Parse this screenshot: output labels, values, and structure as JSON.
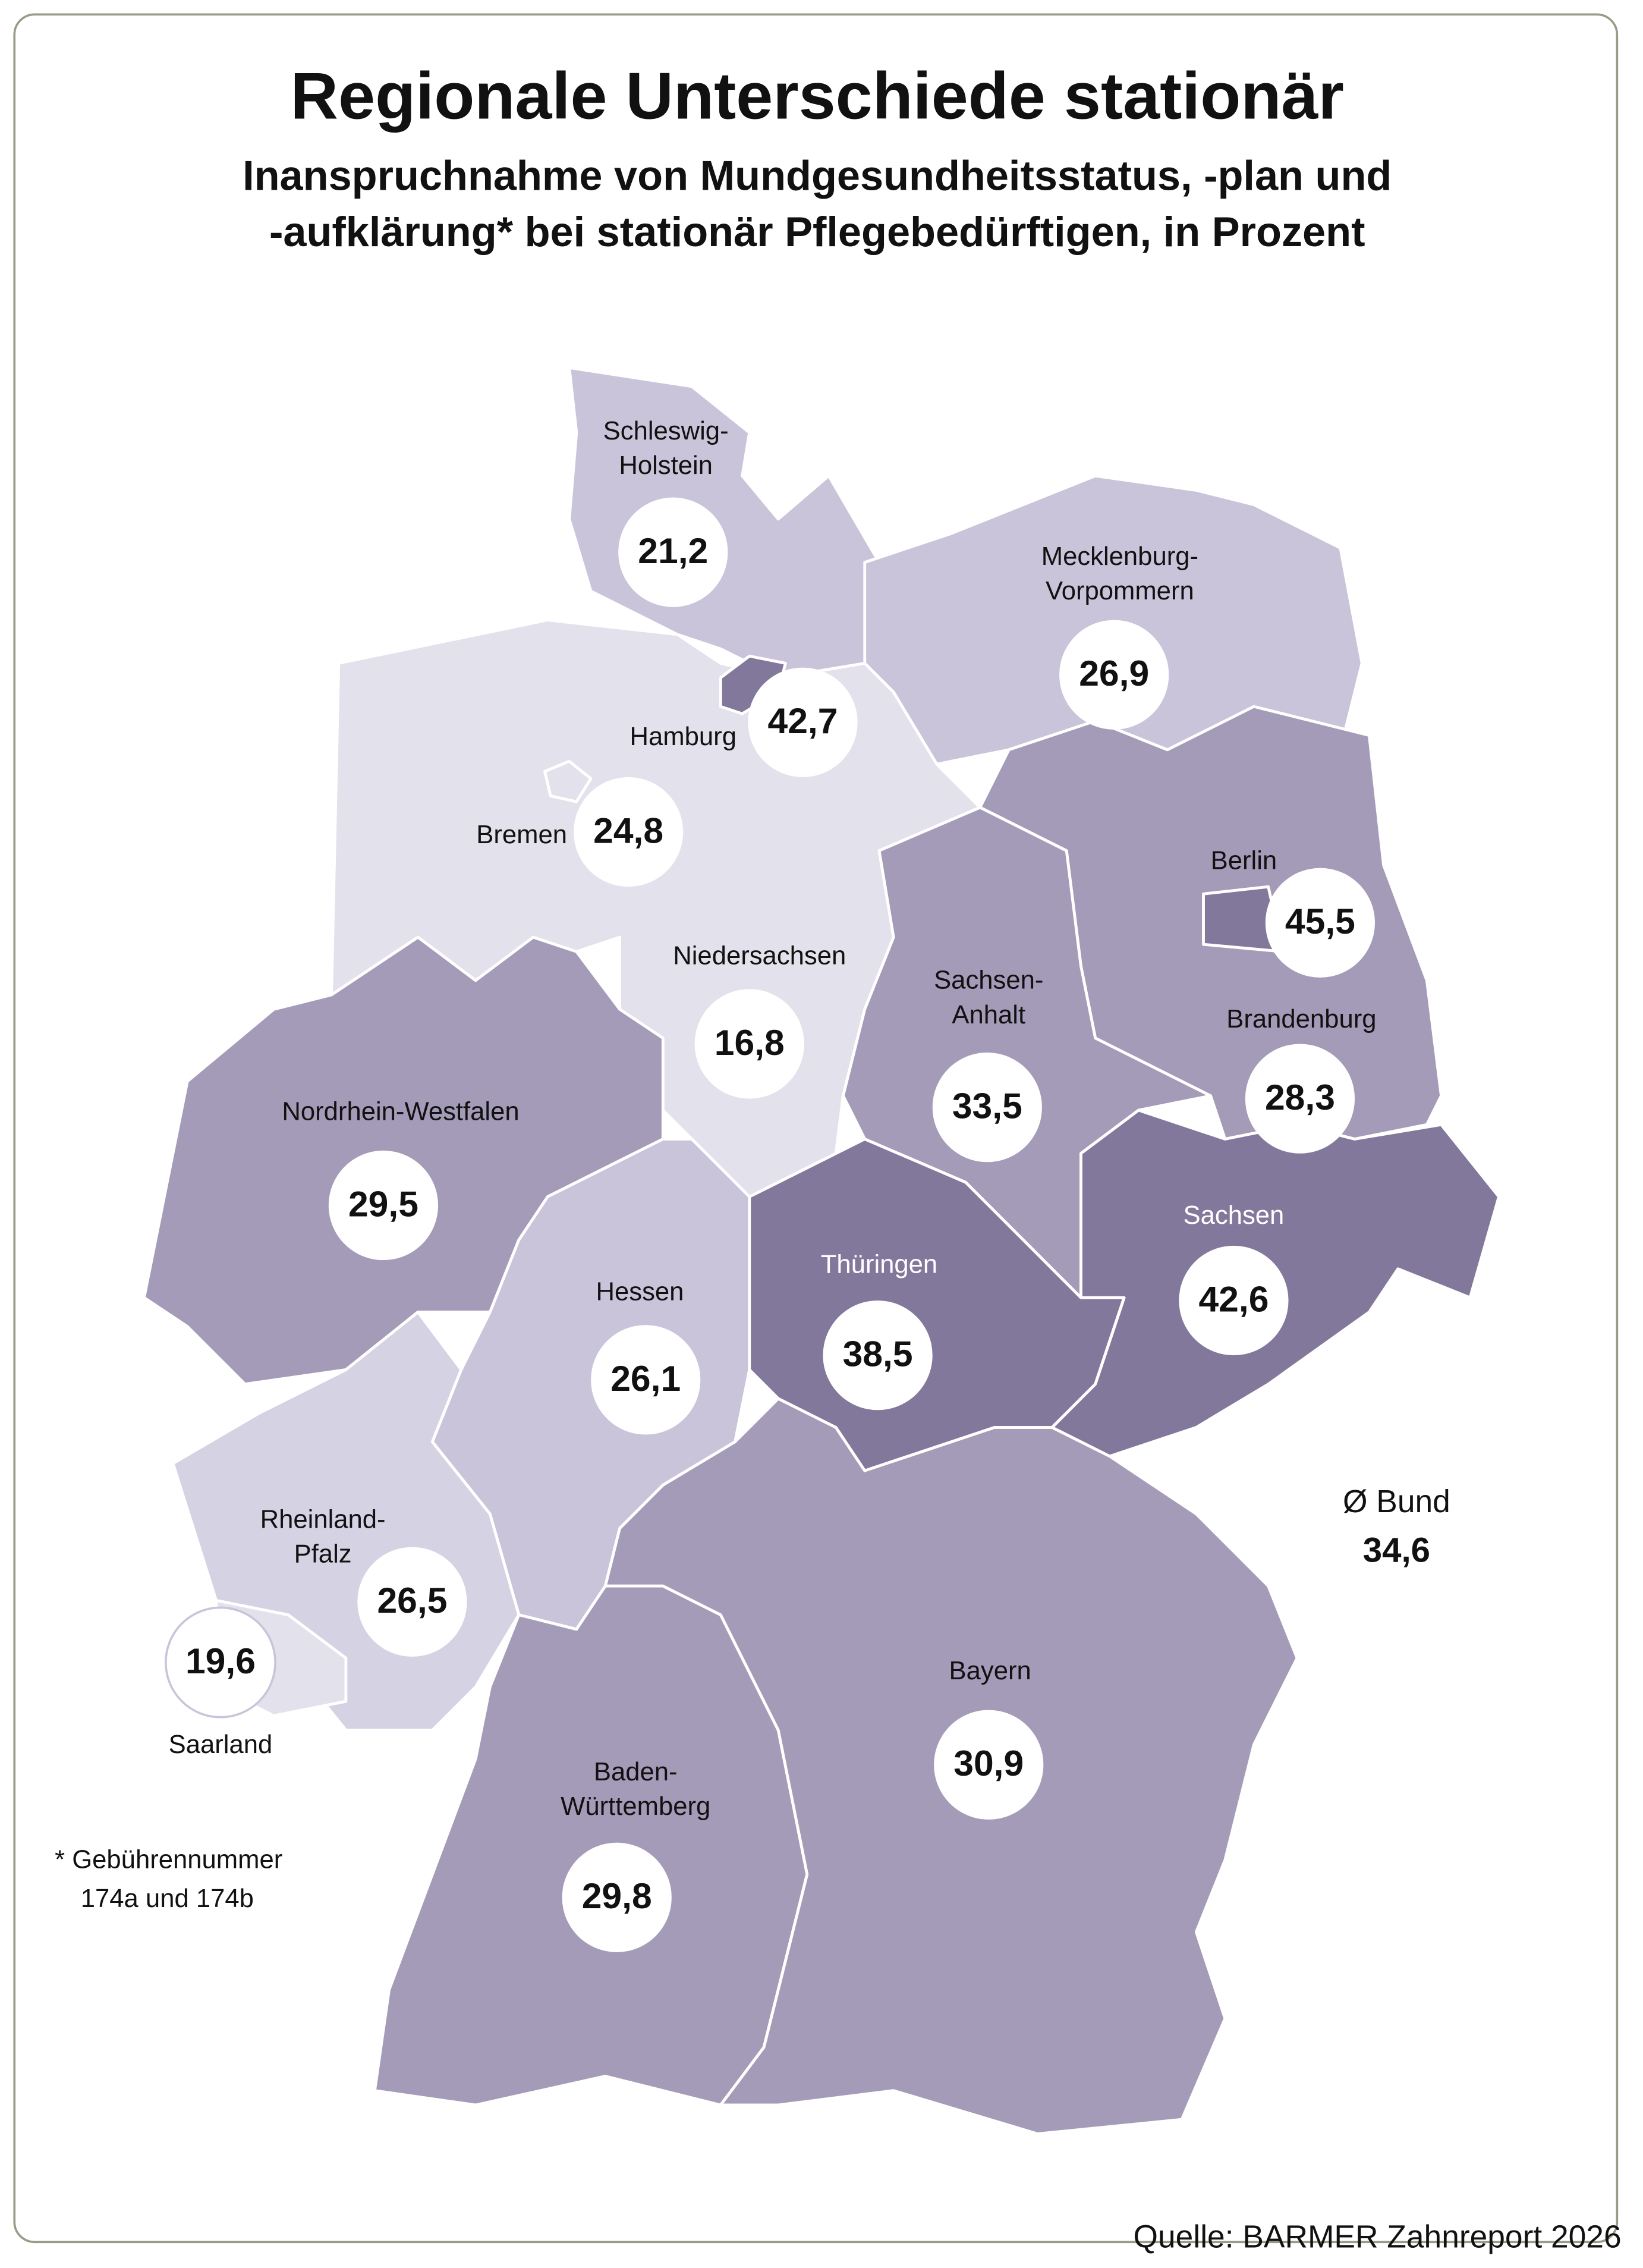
{
  "header": {
    "title": "Regionale Unterschiede stationär",
    "subtitle": [
      "Inanspruchnahme von Mundgesundheitsstatus, -plan und",
      "-aufklärung* bei stationär Pflegebedürftigen, in Prozent"
    ]
  },
  "regions": [
    {
      "name": [
        "Niedersachsen"
      ],
      "value": "16,8",
      "color": "#e3e1ec"
    },
    {
      "name": [
        "Schleswig-",
        "Holstein"
      ],
      "value": "21,2",
      "color": "#c9c4da"
    },
    {
      "name": [
        "Mecklenburg-",
        "Vorpommern"
      ],
      "value": "26,9",
      "color": "#c9c4da"
    },
    {
      "name": [
        "Brandenburg"
      ],
      "value": "28,3",
      "color": "#a49bb8"
    },
    {
      "name": [
        "Sachsen-",
        "Anhalt"
      ],
      "value": "33,5",
      "color": "#a49bb8"
    },
    {
      "name": [
        "Nordrhein-Westfalen"
      ],
      "value": "29,5",
      "color": "#a49bb8"
    },
    {
      "name": [
        "Rheinland-",
        "Pfalz"
      ],
      "value": "26,5",
      "color": "#d5d2e3"
    },
    {
      "name": [
        "Saarland"
      ],
      "value": "19,6",
      "color": "#e3e1ec"
    },
    {
      "name": [
        "Hessen"
      ],
      "value": "26,1",
      "color": "#c9c4da"
    },
    {
      "name": [
        "Baden-",
        "Württemberg"
      ],
      "value": "29,8",
      "color": "#a49bb8"
    },
    {
      "name": [
        "Bayern"
      ],
      "value": "30,9",
      "color": "#a49bb8"
    },
    {
      "name": [
        "Thüringen"
      ],
      "value": "38,5",
      "color": "#82789c"
    },
    {
      "name": [
        "Sachsen"
      ],
      "value": "42,6",
      "color": "#82789c"
    },
    {
      "name": [
        "Hamburg"
      ],
      "value": "42,7",
      "color": "#82789c"
    },
    {
      "name": [
        "Bremen"
      ],
      "value": "24,8",
      "color": "#e3e1ec"
    },
    {
      "name": [
        "Berlin"
      ],
      "value": "45,5",
      "color": "#82789c"
    }
  ],
  "average": {
    "label": "Ø Bund",
    "value": "34,6"
  },
  "footnote": [
    "*  Gebührennummer",
    "174a und 174b"
  ],
  "source": "Quelle: BARMER Zahnreport 2026"
}
